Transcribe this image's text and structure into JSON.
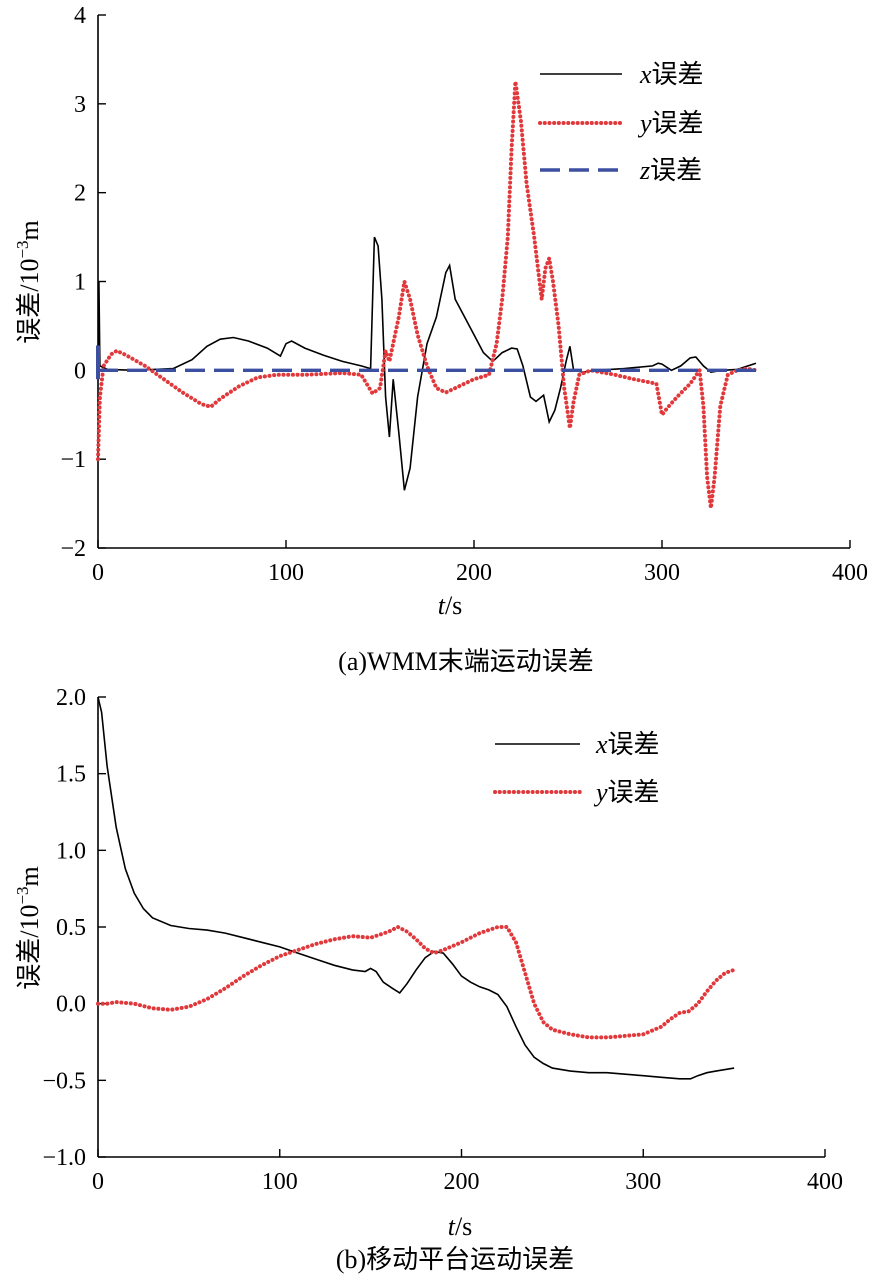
{
  "colors": {
    "x_error": "#000000",
    "y_error": "#e0383b",
    "z_error": "#3c4fa0"
  },
  "chart_data": [
    {
      "type": "line",
      "caption": "(a)WMM末端运动误差",
      "xlabel_var": "t",
      "xlabel_unit": "/s",
      "ylabel": "误差/10",
      "ylabel_exp": "−3",
      "ylabel_unit": "m",
      "xlim": [
        0,
        400
      ],
      "ylim": [
        -2,
        4
      ],
      "xticks": [
        0,
        100,
        200,
        300,
        400
      ],
      "xtick_labels": [
        "0",
        "100",
        "200",
        "300",
        "400"
      ],
      "yticks": [
        -2,
        -1,
        0,
        1,
        2,
        3,
        4
      ],
      "ytick_labels": [
        "−2",
        "−1",
        "0",
        "1",
        "2",
        "3",
        "4"
      ],
      "legend_position": "top-right",
      "series": [
        {
          "name_var": "x",
          "name_suffix": "误差",
          "style": "solid",
          "points": [
            [
              0,
              0
            ],
            [
              0.5,
              1.0
            ],
            [
              1,
              0.05
            ],
            [
              5,
              0.01
            ],
            [
              20,
              0.0
            ],
            [
              40,
              0.02
            ],
            [
              50,
              0.12
            ],
            [
              58,
              0.27
            ],
            [
              65,
              0.35
            ],
            [
              72,
              0.37
            ],
            [
              80,
              0.33
            ],
            [
              90,
              0.25
            ],
            [
              97,
              0.16
            ],
            [
              100,
              0.3
            ],
            [
              103,
              0.33
            ],
            [
              110,
              0.25
            ],
            [
              120,
              0.17
            ],
            [
              130,
              0.1
            ],
            [
              140,
              0.05
            ],
            [
              145,
              0.02
            ],
            [
              147,
              1.5
            ],
            [
              149,
              1.4
            ],
            [
              151,
              0.8
            ],
            [
              153,
              -0.3
            ],
            [
              155,
              -0.75
            ],
            [
              157,
              -0.1
            ],
            [
              160,
              -0.7
            ],
            [
              163,
              -1.35
            ],
            [
              166,
              -1.1
            ],
            [
              170,
              -0.3
            ],
            [
              175,
              0.3
            ],
            [
              180,
              0.6
            ],
            [
              185,
              1.1
            ],
            [
              187,
              1.18
            ],
            [
              190,
              0.8
            ],
            [
              195,
              0.6
            ],
            [
              200,
              0.4
            ],
            [
              205,
              0.2
            ],
            [
              210,
              0.1
            ],
            [
              215,
              0.2
            ],
            [
              220,
              0.25
            ],
            [
              223,
              0.24
            ],
            [
              226,
              0.05
            ],
            [
              230,
              -0.3
            ],
            [
              233,
              -0.35
            ],
            [
              237,
              -0.28
            ],
            [
              240,
              -0.58
            ],
            [
              243,
              -0.45
            ],
            [
              246,
              -0.2
            ],
            [
              249,
              0.1
            ],
            [
              251,
              0.27
            ],
            [
              253,
              0.0
            ],
            [
              258,
              -0.02
            ],
            [
              265,
              0.0
            ],
            [
              280,
              0.02
            ],
            [
              295,
              0.05
            ],
            [
              298,
              0.08
            ],
            [
              300,
              0.07
            ],
            [
              305,
              0.0
            ],
            [
              310,
              0.05
            ],
            [
              315,
              0.14
            ],
            [
              318,
              0.15
            ],
            [
              322,
              0.05
            ],
            [
              326,
              -0.02
            ],
            [
              332,
              0.0
            ],
            [
              340,
              0.01
            ],
            [
              350,
              0.08
            ]
          ]
        },
        {
          "name_var": "y",
          "name_suffix": "误差",
          "style": "dotted",
          "points": [
            [
              0,
              -1.0
            ],
            [
              1,
              -0.3
            ],
            [
              3,
              0.05
            ],
            [
              7,
              0.18
            ],
            [
              10,
              0.22
            ],
            [
              15,
              0.17
            ],
            [
              25,
              0.05
            ],
            [
              35,
              -0.1
            ],
            [
              45,
              -0.25
            ],
            [
              55,
              -0.38
            ],
            [
              60,
              -0.41
            ],
            [
              65,
              -0.32
            ],
            [
              75,
              -0.18
            ],
            [
              85,
              -0.08
            ],
            [
              95,
              -0.05
            ],
            [
              110,
              -0.05
            ],
            [
              130,
              -0.03
            ],
            [
              140,
              -0.05
            ],
            [
              146,
              -0.26
            ],
            [
              150,
              -0.2
            ],
            [
              153,
              0.22
            ],
            [
              155,
              0.1
            ],
            [
              160,
              0.6
            ],
            [
              163,
              1.0
            ],
            [
              166,
              0.8
            ],
            [
              170,
              0.4
            ],
            [
              175,
              0.05
            ],
            [
              180,
              -0.2
            ],
            [
              185,
              -0.25
            ],
            [
              190,
              -0.2
            ],
            [
              200,
              -0.1
            ],
            [
              208,
              -0.05
            ],
            [
              212,
              0.3
            ],
            [
              215,
              0.8
            ],
            [
              218,
              1.5
            ],
            [
              220,
              2.5
            ],
            [
              222,
              3.25
            ],
            [
              225,
              2.8
            ],
            [
              228,
              2.1
            ],
            [
              232,
              1.5
            ],
            [
              236,
              0.8
            ],
            [
              238,
              1.15
            ],
            [
              240,
              1.26
            ],
            [
              242,
              1.0
            ],
            [
              245,
              0.5
            ],
            [
              248,
              -0.2
            ],
            [
              251,
              -0.65
            ],
            [
              253,
              -0.35
            ],
            [
              256,
              -0.05
            ],
            [
              262,
              0.0
            ],
            [
              275,
              -0.05
            ],
            [
              285,
              -0.1
            ],
            [
              297,
              -0.15
            ],
            [
              300,
              -0.5
            ],
            [
              303,
              -0.42
            ],
            [
              308,
              -0.3
            ],
            [
              315,
              -0.15
            ],
            [
              320,
              0.0
            ],
            [
              322,
              -0.4
            ],
            [
              324,
              -1.2
            ],
            [
              326,
              -1.55
            ],
            [
              328,
              -1.2
            ],
            [
              331,
              -0.4
            ],
            [
              335,
              -0.05
            ],
            [
              340,
              0.0
            ],
            [
              345,
              0.02
            ],
            [
              350,
              0.0
            ]
          ]
        },
        {
          "name_var": "z",
          "name_suffix": "误差",
          "style": "dashed",
          "spike": [
            [
              0,
              -0.1
            ],
            [
              0,
              0.28
            ]
          ],
          "points": [
            [
              0,
              0
            ],
            [
              350,
              0
            ]
          ]
        }
      ]
    },
    {
      "type": "line",
      "caption": "(b)移动平台运动误差",
      "xlabel_var": "t",
      "xlabel_unit": "/s",
      "ylabel": "误差/10",
      "ylabel_exp": "−3",
      "ylabel_unit": "m",
      "xlim": [
        0,
        400
      ],
      "ylim": [
        -1.0,
        2.0
      ],
      "xticks": [
        0,
        100,
        200,
        300,
        400
      ],
      "xtick_labels": [
        "0",
        "100",
        "200",
        "300",
        "400"
      ],
      "yticks": [
        -1.0,
        -0.5,
        0.0,
        0.5,
        1.0,
        1.5,
        2.0
      ],
      "ytick_labels": [
        "−1.0",
        "−0.5",
        "0.0",
        "0.5",
        "1.0",
        "1.5",
        "2.0"
      ],
      "legend_position": "top-right",
      "series": [
        {
          "name_var": "x",
          "name_suffix": "误差",
          "style": "solid",
          "points": [
            [
              0,
              2.0
            ],
            [
              2,
              1.9
            ],
            [
              5,
              1.55
            ],
            [
              10,
              1.15
            ],
            [
              15,
              0.88
            ],
            [
              20,
              0.72
            ],
            [
              25,
              0.62
            ],
            [
              30,
              0.56
            ],
            [
              40,
              0.51
            ],
            [
              50,
              0.49
            ],
            [
              60,
              0.48
            ],
            [
              70,
              0.46
            ],
            [
              80,
              0.43
            ],
            [
              90,
              0.4
            ],
            [
              100,
              0.37
            ],
            [
              110,
              0.33
            ],
            [
              120,
              0.29
            ],
            [
              130,
              0.25
            ],
            [
              140,
              0.22
            ],
            [
              147,
              0.21
            ],
            [
              150,
              0.23
            ],
            [
              153,
              0.21
            ],
            [
              157,
              0.14
            ],
            [
              162,
              0.1
            ],
            [
              166,
              0.07
            ],
            [
              170,
              0.13
            ],
            [
              175,
              0.22
            ],
            [
              180,
              0.3
            ],
            [
              185,
              0.34
            ],
            [
              190,
              0.33
            ],
            [
              195,
              0.26
            ],
            [
              200,
              0.18
            ],
            [
              205,
              0.14
            ],
            [
              210,
              0.11
            ],
            [
              215,
              0.09
            ],
            [
              220,
              0.06
            ],
            [
              225,
              -0.02
            ],
            [
              230,
              -0.15
            ],
            [
              235,
              -0.27
            ],
            [
              240,
              -0.35
            ],
            [
              245,
              -0.39
            ],
            [
              250,
              -0.42
            ],
            [
              260,
              -0.44
            ],
            [
              270,
              -0.45
            ],
            [
              280,
              -0.45
            ],
            [
              290,
              -0.46
            ],
            [
              300,
              -0.47
            ],
            [
              310,
              -0.48
            ],
            [
              320,
              -0.49
            ],
            [
              326,
              -0.49
            ],
            [
              330,
              -0.47
            ],
            [
              335,
              -0.45
            ],
            [
              340,
              -0.44
            ],
            [
              345,
              -0.43
            ],
            [
              350,
              -0.42
            ]
          ]
        },
        {
          "name_var": "y",
          "name_suffix": "误差",
          "style": "dotted",
          "points": [
            [
              0,
              0.0
            ],
            [
              5,
              0.0
            ],
            [
              10,
              0.01
            ],
            [
              20,
              0.0
            ],
            [
              30,
              -0.03
            ],
            [
              40,
              -0.04
            ],
            [
              50,
              -0.02
            ],
            [
              60,
              0.03
            ],
            [
              70,
              0.1
            ],
            [
              80,
              0.18
            ],
            [
              90,
              0.25
            ],
            [
              100,
              0.31
            ],
            [
              110,
              0.35
            ],
            [
              120,
              0.39
            ],
            [
              130,
              0.42
            ],
            [
              140,
              0.44
            ],
            [
              150,
              0.43
            ],
            [
              155,
              0.45
            ],
            [
              160,
              0.47
            ],
            [
              165,
              0.5
            ],
            [
              170,
              0.47
            ],
            [
              175,
              0.42
            ],
            [
              180,
              0.36
            ],
            [
              185,
              0.33
            ],
            [
              190,
              0.35
            ],
            [
              200,
              0.4
            ],
            [
              210,
              0.46
            ],
            [
              220,
              0.5
            ],
            [
              225,
              0.5
            ],
            [
              230,
              0.4
            ],
            [
              235,
              0.2
            ],
            [
              240,
              0.0
            ],
            [
              245,
              -0.12
            ],
            [
              250,
              -0.17
            ],
            [
              260,
              -0.2
            ],
            [
              270,
              -0.22
            ],
            [
              280,
              -0.22
            ],
            [
              290,
              -0.21
            ],
            [
              300,
              -0.2
            ],
            [
              310,
              -0.15
            ],
            [
              315,
              -0.1
            ],
            [
              320,
              -0.06
            ],
            [
              325,
              -0.05
            ],
            [
              330,
              0.0
            ],
            [
              335,
              0.08
            ],
            [
              340,
              0.15
            ],
            [
              345,
              0.2
            ],
            [
              350,
              0.22
            ]
          ]
        }
      ]
    }
  ]
}
